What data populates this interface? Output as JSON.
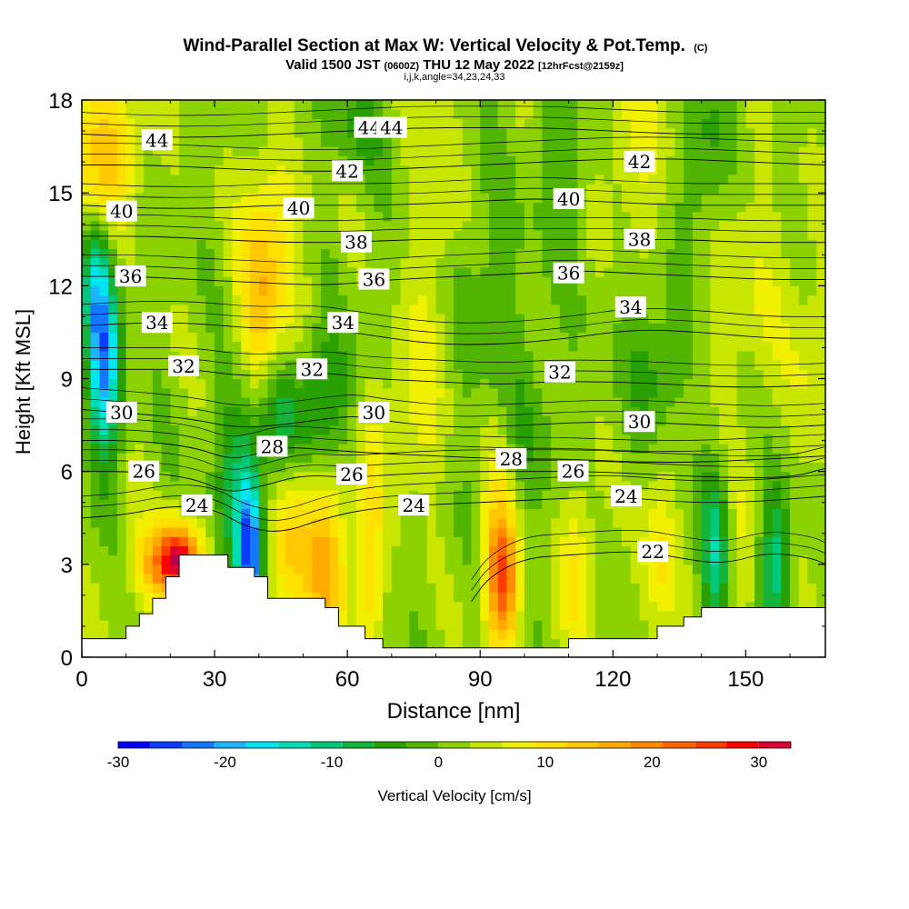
{
  "chart_data": {
    "type": "heatmap",
    "title": "Wind-Parallel Section at Max W: Vertical Velocity & Pot.Temp.",
    "title_mark": "(C)",
    "subtitle_valid": "Valid 1500 JST",
    "subtitle_utc": "(0600Z)",
    "subtitle_date": "THU 12 May 2022",
    "subtitle_fcst": "[12hrFcst@2159z]",
    "subtitle_grid": "i,j,k,angle=34,23,24,33",
    "xlabel": "Distance [nm]",
    "ylabel": "Height [Kft MSL]",
    "xlim": [
      0,
      168
    ],
    "ylim": [
      0,
      18
    ],
    "xticks": [
      0,
      30,
      60,
      90,
      120,
      150
    ],
    "yticks": [
      0,
      3,
      6,
      9,
      12,
      15,
      18
    ],
    "colorbar": {
      "label": "Vertical Velocity [cm/s]",
      "range": [
        -30,
        33
      ],
      "step": 3,
      "ticks": [
        -30,
        -20,
        -10,
        0,
        10,
        20,
        30
      ],
      "colors": [
        "#0000ff",
        "#0a3cff",
        "#1478ff",
        "#1eb4ff",
        "#00e6f0",
        "#00dcb4",
        "#00c878",
        "#14b43c",
        "#28a000",
        "#50b400",
        "#8cd200",
        "#c8e600",
        "#f0f000",
        "#ffe100",
        "#ffc800",
        "#ffaa00",
        "#ff8c00",
        "#ff6400",
        "#ff3c00",
        "#ff0000",
        "#dc0032",
        "#b40050",
        "#8c006e",
        "#64008c",
        "#460096"
      ]
    },
    "terrain_profile": [
      [
        0,
        0.6
      ],
      [
        6,
        0.6
      ],
      [
        6,
        0.6
      ],
      [
        10,
        0.6
      ],
      [
        10,
        1.0
      ],
      [
        13,
        1.0
      ],
      [
        13,
        1.4
      ],
      [
        16,
        1.4
      ],
      [
        16,
        1.9
      ],
      [
        19,
        1.9
      ],
      [
        19,
        2.6
      ],
      [
        22,
        2.6
      ],
      [
        22,
        3.3
      ],
      [
        33,
        3.3
      ],
      [
        33,
        2.9
      ],
      [
        39,
        2.9
      ],
      [
        39,
        2.6
      ],
      [
        42,
        2.6
      ],
      [
        42,
        1.9
      ],
      [
        55,
        1.9
      ],
      [
        55,
        1.6
      ],
      [
        58,
        1.6
      ],
      [
        58,
        1.0
      ],
      [
        64,
        1.0
      ],
      [
        64,
        0.6
      ],
      [
        68,
        0.6
      ],
      [
        68,
        0.3
      ],
      [
        110,
        0.3
      ],
      [
        110,
        0.6
      ],
      [
        124,
        0.6
      ],
      [
        124,
        0.6
      ],
      [
        130,
        0.6
      ],
      [
        130,
        1.0
      ],
      [
        136,
        1.0
      ],
      [
        136,
        1.3
      ],
      [
        140,
        1.3
      ],
      [
        140,
        1.6
      ],
      [
        168,
        1.6
      ]
    ],
    "w_features": [
      {
        "x": 5,
        "y": 9.5,
        "w": -22,
        "sx": 2.5,
        "sy": 2.2
      },
      {
        "x": 3,
        "y": 12,
        "w": -10,
        "sx": 2,
        "sy": 1.5
      },
      {
        "x": 38,
        "y": 3.5,
        "w": -26,
        "sx": 2.0,
        "sy": 1.6
      },
      {
        "x": 35,
        "y": 6.0,
        "w": -9,
        "sx": 3,
        "sy": 2
      },
      {
        "x": 45,
        "y": 7.5,
        "w": -9,
        "sx": 5,
        "sy": 1.5
      },
      {
        "x": 55,
        "y": 8.5,
        "w": -8,
        "sx": 4,
        "sy": 1.5
      },
      {
        "x": 22,
        "y": 3.2,
        "w": 22,
        "sx": 3,
        "sy": 0.7
      },
      {
        "x": 18,
        "y": 3.0,
        "w": 14,
        "sx": 5,
        "sy": 1.0
      },
      {
        "x": 55,
        "y": 3.0,
        "w": 14,
        "sx": 4,
        "sy": 2.0
      },
      {
        "x": 47,
        "y": 4.0,
        "w": 10,
        "sx": 3,
        "sy": 2.0
      },
      {
        "x": 65,
        "y": 3.0,
        "w": 10,
        "sx": 2,
        "sy": 2.5
      },
      {
        "x": 95,
        "y": 2.5,
        "w": 20,
        "sx": 2.5,
        "sy": 1.5
      },
      {
        "x": 94,
        "y": 5,
        "w": 6,
        "sx": 3,
        "sy": 3
      },
      {
        "x": 112,
        "y": 3,
        "w": 8,
        "sx": 3,
        "sy": 2
      },
      {
        "x": 130,
        "y": 3,
        "w": 8,
        "sx": 3,
        "sy": 2
      },
      {
        "x": 143,
        "y": 3.5,
        "w": -12,
        "sx": 2,
        "sy": 2
      },
      {
        "x": 157,
        "y": 3.2,
        "w": -12,
        "sx": 2.5,
        "sy": 1.8
      },
      {
        "x": 150,
        "y": 3.5,
        "w": 4,
        "sx": 2,
        "sy": 2
      },
      {
        "x": 5,
        "y": 16.5,
        "w": 12,
        "sx": 6,
        "sy": 1.8
      },
      {
        "x": 43,
        "y": 14,
        "w": 8,
        "sx": 5,
        "sy": 3
      },
      {
        "x": 80,
        "y": 14,
        "w": 6,
        "sx": 4,
        "sy": 3
      },
      {
        "x": 40,
        "y": 11,
        "w": 9,
        "sx": 3,
        "sy": 2
      },
      {
        "x": 75,
        "y": 8,
        "w": 6,
        "sx": 6,
        "sy": 2
      },
      {
        "x": 125,
        "y": 16.5,
        "w": 5,
        "sx": 8,
        "sy": 2
      },
      {
        "x": 150,
        "y": 12,
        "w": 4,
        "sx": 8,
        "sy": 3
      },
      {
        "x": 130,
        "y": 9.5,
        "w": -6,
        "sx": 5,
        "sy": 1.5
      },
      {
        "x": 140,
        "y": 16,
        "w": -7,
        "sx": 4,
        "sy": 2
      },
      {
        "x": 110,
        "y": 16,
        "w": -5,
        "sx": 4,
        "sy": 2
      },
      {
        "x": 62,
        "y": 17,
        "w": -5,
        "sx": 5,
        "sy": 1
      },
      {
        "x": 45,
        "y": 17,
        "w": -4,
        "sx": 4,
        "sy": 1
      },
      {
        "x": 90,
        "y": 11,
        "w": -4,
        "sx": 8,
        "sy": 3
      },
      {
        "x": 100,
        "y": 7,
        "w": -3,
        "sx": 6,
        "sy": 2
      },
      {
        "x": 165,
        "y": 9,
        "w": 4,
        "sx": 4,
        "sy": 3
      }
    ],
    "theta_contours": [
      {
        "value": 22,
        "label": "22",
        "lx": 129,
        "ly": 3.4,
        "pts": [
          [
            88,
            1.8
          ],
          [
            92,
            2.6
          ],
          [
            100,
            3.2
          ],
          [
            110,
            3.3
          ],
          [
            120,
            3.4
          ],
          [
            128,
            3.4
          ],
          [
            135,
            3.2
          ],
          [
            145,
            3.0
          ],
          [
            155,
            3.4
          ],
          [
            165,
            3.2
          ],
          [
            168,
            3.0
          ]
        ]
      },
      {
        "value": 24,
        "label": "24",
        "lx": 26,
        "ly": 4.9,
        "pts": [
          [
            0,
            4.5
          ],
          [
            10,
            4.6
          ],
          [
            20,
            4.9
          ],
          [
            30,
            4.8
          ],
          [
            37,
            4.2
          ],
          [
            45,
            4.0
          ],
          [
            55,
            4.5
          ],
          [
            65,
            4.8
          ],
          [
            75,
            4.9
          ],
          [
            90,
            5.0
          ],
          [
            105,
            5.1
          ],
          [
            120,
            5.2
          ],
          [
            135,
            5.0
          ],
          [
            150,
            5.0
          ],
          [
            168,
            5.2
          ]
        ]
      },
      {
        "value": 26,
        "label": "26",
        "lx": 14,
        "ly": 6.0,
        "pts": [
          [
            0,
            6.0
          ],
          [
            12,
            6.0
          ],
          [
            25,
            5.8
          ],
          [
            33,
            5.3
          ],
          [
            40,
            5.5
          ],
          [
            50,
            5.9
          ],
          [
            60,
            5.8
          ],
          [
            70,
            5.9
          ],
          [
            85,
            6.0
          ],
          [
            100,
            6.0
          ],
          [
            115,
            6.0
          ],
          [
            130,
            5.9
          ],
          [
            145,
            5.8
          ],
          [
            160,
            5.8
          ],
          [
            168,
            6.1
          ]
        ]
      },
      {
        "value": 28,
        "label": "28",
        "lx": 43,
        "ly": 6.8,
        "pts": [
          [
            0,
            7.0
          ],
          [
            12,
            7.0
          ],
          [
            25,
            6.8
          ],
          [
            33,
            6.4
          ],
          [
            38,
            6.5
          ],
          [
            45,
            6.8
          ],
          [
            55,
            6.7
          ],
          [
            65,
            6.6
          ],
          [
            80,
            6.5
          ],
          [
            95,
            6.4
          ],
          [
            110,
            6.4
          ],
          [
            125,
            6.3
          ],
          [
            140,
            6.3
          ],
          [
            155,
            6.4
          ],
          [
            168,
            6.5
          ]
        ]
      },
      {
        "value": 30,
        "label": "30",
        "lx": 9,
        "ly": 7.9,
        "pts": [
          [
            0,
            8.0
          ],
          [
            10,
            7.9
          ],
          [
            25,
            7.7
          ],
          [
            35,
            7.4
          ],
          [
            45,
            7.5
          ],
          [
            55,
            7.7
          ],
          [
            62,
            7.8
          ],
          [
            70,
            7.6
          ],
          [
            85,
            7.4
          ],
          [
            100,
            7.5
          ],
          [
            115,
            7.6
          ],
          [
            127,
            7.6
          ],
          [
            140,
            7.5
          ],
          [
            155,
            7.4
          ],
          [
            168,
            7.5
          ]
        ]
      },
      {
        "value": 32,
        "label": "32",
        "lx": 23,
        "ly": 9.4,
        "pts": [
          [
            0,
            9.3
          ],
          [
            12,
            9.3
          ],
          [
            25,
            9.3
          ],
          [
            35,
            9.1
          ],
          [
            45,
            9.1
          ],
          [
            55,
            9.2
          ],
          [
            65,
            9.0
          ],
          [
            80,
            8.9
          ],
          [
            95,
            8.8
          ],
          [
            105,
            8.9
          ],
          [
            120,
            8.9
          ],
          [
            135,
            8.8
          ],
          [
            150,
            8.7
          ],
          [
            168,
            8.8
          ]
        ]
      },
      {
        "value": 34,
        "label": "34",
        "lx": 17,
        "ly": 10.8,
        "pts": [
          [
            0,
            10.7
          ],
          [
            12,
            10.8
          ],
          [
            25,
            10.8
          ],
          [
            40,
            10.6
          ],
          [
            52,
            10.7
          ],
          [
            65,
            10.4
          ],
          [
            80,
            10.1
          ],
          [
            95,
            10.1
          ],
          [
            110,
            10.3
          ],
          [
            125,
            10.6
          ],
          [
            140,
            10.5
          ],
          [
            155,
            10.3
          ],
          [
            168,
            10.3
          ]
        ]
      },
      {
        "value": 36,
        "label": "36",
        "lx": 11,
        "ly": 12.3,
        "pts": [
          [
            0,
            12.3
          ],
          [
            12,
            12.3
          ],
          [
            25,
            12.2
          ],
          [
            40,
            12.1
          ],
          [
            55,
            12.0
          ],
          [
            70,
            12.2
          ],
          [
            85,
            12.3
          ],
          [
            100,
            12.4
          ],
          [
            110,
            12.5
          ],
          [
            125,
            12.4
          ],
          [
            140,
            12.3
          ],
          [
            155,
            12.2
          ],
          [
            168,
            12.2
          ]
        ]
      },
      {
        "value": 38,
        "label": "38",
        "lx": 62,
        "ly": 13.4,
        "pts": [
          [
            0,
            13.6
          ],
          [
            15,
            13.6
          ],
          [
            30,
            13.5
          ],
          [
            45,
            13.4
          ],
          [
            60,
            13.4
          ],
          [
            75,
            13.5
          ],
          [
            90,
            13.5
          ],
          [
            105,
            13.5
          ],
          [
            120,
            13.5
          ],
          [
            135,
            13.5
          ],
          [
            150,
            13.4
          ],
          [
            168,
            13.4
          ]
        ]
      },
      {
        "value": 40,
        "label": "40",
        "lx": 9,
        "ly": 14.4,
        "pts": [
          [
            0,
            14.6
          ],
          [
            15,
            14.5
          ],
          [
            30,
            14.5
          ],
          [
            43,
            14.6
          ],
          [
            55,
            14.6
          ],
          [
            70,
            14.6
          ],
          [
            85,
            14.7
          ],
          [
            100,
            14.8
          ],
          [
            105,
            14.8
          ],
          [
            120,
            14.7
          ],
          [
            135,
            14.6
          ],
          [
            150,
            14.6
          ],
          [
            168,
            14.6
          ]
        ]
      },
      {
        "value": 42,
        "label": "42",
        "lx": 60,
        "ly": 15.7,
        "pts": [
          [
            0,
            15.9
          ],
          [
            15,
            15.9
          ],
          [
            30,
            15.8
          ],
          [
            45,
            15.7
          ],
          [
            60,
            15.7
          ],
          [
            75,
            15.8
          ],
          [
            90,
            15.9
          ],
          [
            105,
            16.0
          ],
          [
            120,
            16.1
          ],
          [
            135,
            16.1
          ],
          [
            150,
            16.0
          ],
          [
            168,
            15.9
          ]
        ]
      },
      {
        "value": 44,
        "label": "44",
        "lx": 17,
        "ly": 16.7,
        "pts": [
          [
            0,
            16.9
          ],
          [
            15,
            16.8
          ],
          [
            30,
            16.8
          ],
          [
            45,
            16.9
          ],
          [
            60,
            17.0
          ],
          [
            75,
            17.1
          ],
          [
            90,
            17.1
          ],
          [
            105,
            17.1
          ],
          [
            120,
            17.0
          ],
          [
            135,
            16.9
          ],
          [
            150,
            16.9
          ],
          [
            168,
            16.9
          ]
        ]
      }
    ],
    "extra_labels": [
      {
        "label": "44",
        "x": 65,
        "y": 17.1
      },
      {
        "label": "44",
        "x": 70,
        "y": 17.1
      },
      {
        "label": "42",
        "x": 126,
        "y": 16.0
      },
      {
        "label": "40",
        "x": 49,
        "y": 14.5
      },
      {
        "label": "40",
        "x": 110,
        "y": 14.8
      },
      {
        "label": "38",
        "x": 126,
        "y": 13.5
      },
      {
        "label": "36",
        "x": 66,
        "y": 12.2
      },
      {
        "label": "36",
        "x": 110,
        "y": 12.4
      },
      {
        "label": "34",
        "x": 59,
        "y": 10.8
      },
      {
        "label": "34",
        "x": 124,
        "y": 11.3
      },
      {
        "label": "32",
        "x": 52,
        "y": 9.3
      },
      {
        "label": "32",
        "x": 108,
        "y": 9.2
      },
      {
        "label": "30",
        "x": 66,
        "y": 7.9
      },
      {
        "label": "30",
        "x": 126,
        "y": 7.6
      },
      {
        "label": "28",
        "x": 97,
        "y": 6.4
      },
      {
        "label": "26",
        "x": 61,
        "y": 5.9
      },
      {
        "label": "26",
        "x": 111,
        "y": 6.0
      },
      {
        "label": "24",
        "x": 75,
        "y": 4.9
      },
      {
        "label": "24",
        "x": 123,
        "y": 5.2
      }
    ]
  }
}
